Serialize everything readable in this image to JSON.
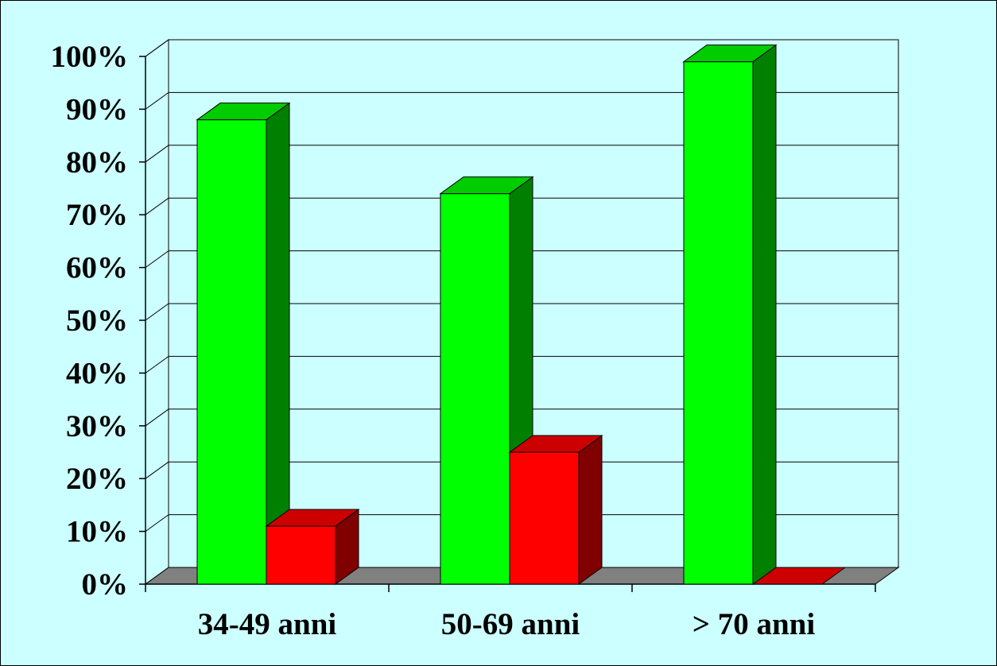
{
  "chart_data": {
    "type": "bar",
    "variant": "3d-clustered-column",
    "categories": [
      "34-49 anni",
      "50-69 anni",
      "> 70 anni"
    ],
    "series": [
      {
        "values": [
          88,
          74,
          99
        ],
        "color": "#00ff00",
        "side_color": "#008000",
        "top_color": "#00cc00"
      },
      {
        "values": [
          11,
          25,
          0
        ],
        "color": "#ff0000",
        "side_color": "#800000",
        "top_color": "#cc0000"
      }
    ],
    "yticks": [
      "0%",
      "10%",
      "20%",
      "30%",
      "40%",
      "50%",
      "60%",
      "70%",
      "80%",
      "90%",
      "100%"
    ],
    "ylim": [
      0,
      100
    ],
    "grid": true,
    "legend": "none",
    "colors": {
      "background": "#ccffff",
      "floor": "#808080",
      "grid": "#000000"
    }
  }
}
